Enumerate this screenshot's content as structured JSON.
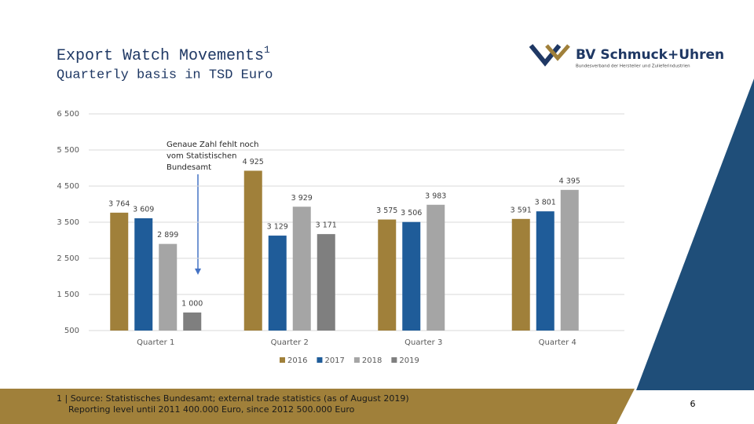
{
  "chart_data": {
    "type": "bar",
    "title": "Export Watch Movements",
    "title_footnote": "1",
    "subtitle": "Quarterly basis in TSD Euro",
    "annotation": [
      "Genaue Zahl fehlt noch",
      "vom Statistischen",
      "Bundesamt"
    ],
    "categories": [
      "Quarter 1",
      "Quarter 2",
      "Quarter 3",
      "Quarter 4"
    ],
    "series": [
      {
        "name": "2016",
        "color": "#a0803a",
        "values": [
          3764,
          4925,
          3575,
          3591
        ],
        "value_labels": [
          "3 764",
          "4 925",
          "3 575",
          "3 591"
        ]
      },
      {
        "name": "2017",
        "color": "#1f5c99",
        "values": [
          3609,
          3129,
          3506,
          3801
        ],
        "value_labels": [
          "3 609",
          "3 129",
          "3 506",
          "3 801"
        ]
      },
      {
        "name": "2018",
        "color": "#a5a5a5",
        "values": [
          2899,
          3929,
          3983,
          4395
        ],
        "value_labels": [
          "2 899",
          "3 929",
          "3 983",
          "4 395"
        ]
      },
      {
        "name": "2019",
        "color": "#7f7f7f",
        "values": [
          1000,
          3171,
          null,
          null
        ],
        "value_labels": [
          "1 000",
          "3 171",
          null,
          null
        ]
      }
    ],
    "ylim": [
      500,
      6500
    ],
    "yticks": [
      500,
      {
        "value": 1500,
        "label": "1 500"
      },
      {
        "value": 2500,
        "label": "2 500"
      },
      {
        "value": 3500,
        "label": "3 500"
      },
      {
        "value": 4500,
        "label": "4 500"
      },
      {
        "value": 5500,
        "label": "5 500"
      },
      {
        "value": 6500,
        "label": "6 500"
      }
    ],
    "grid": true,
    "legend": "bottom"
  },
  "slide": {
    "logo_name": "BV Schmuck+Uhren",
    "logo_subtitle": "Bundesverband der Hersteller und Zulieferindustrien",
    "footnotes": [
      "1 | Source: Statistisches Bundesamt; external trade statistics (as of August 2019)",
      "Reporting level until 2011 400.000 Euro, since 2012 500.000 Euro"
    ],
    "page_number": "6"
  }
}
